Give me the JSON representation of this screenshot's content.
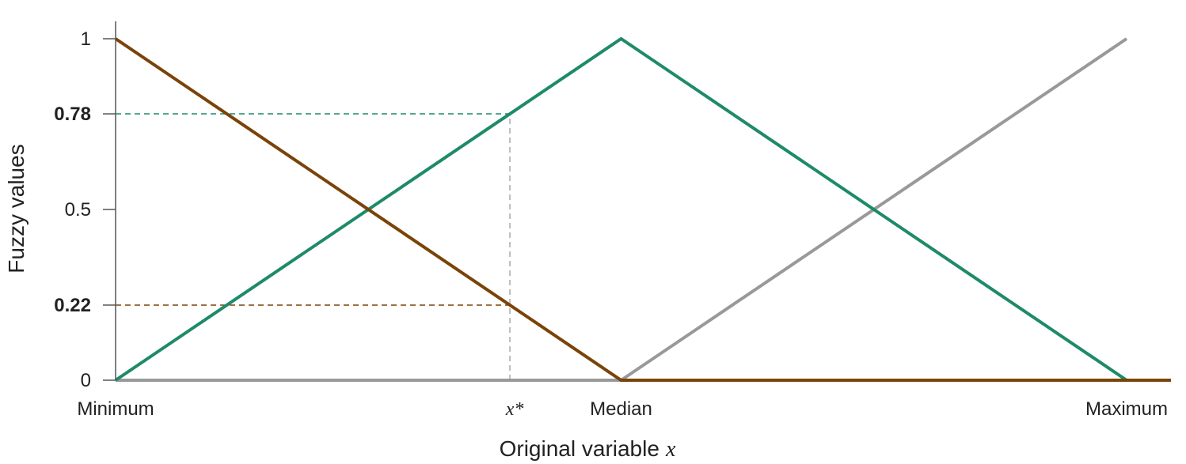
{
  "chart_data": {
    "type": "line",
    "xlabel": "Original variable",
    "xlabel_var": "x",
    "ylabel": "Fuzzy values",
    "ylim": [
      0,
      1
    ],
    "xlim": [
      0,
      1
    ],
    "x_ticks": [
      {
        "value": 0,
        "label": "Minimum"
      },
      {
        "value": 0.5,
        "label": "Median"
      },
      {
        "value": 1,
        "label": "Maximum"
      }
    ],
    "x_marker": {
      "value": 0.39,
      "label": "x*"
    },
    "y_ticks": [
      {
        "value": 0,
        "label": "0",
        "bold": false
      },
      {
        "value": 0.22,
        "label": "0.22",
        "bold": true
      },
      {
        "value": 0.5,
        "label": "0.5",
        "bold": false
      },
      {
        "value": 0.78,
        "label": "0.78",
        "bold": true
      },
      {
        "value": 1,
        "label": "1",
        "bold": false
      }
    ],
    "series": [
      {
        "x": [
          0,
          0.5,
          1.25
        ],
        "y": [
          0,
          0,
          0
        ],
        "color": "#999999",
        "baseline": true
      },
      {
        "x": [
          0.5,
          1
        ],
        "y": [
          0,
          1
        ],
        "color": "#999999"
      },
      {
        "x": [
          0,
          0.5,
          1
        ],
        "y": [
          0,
          1,
          0
        ],
        "color": "#1e8a6a"
      },
      {
        "x": [
          0,
          0.5,
          1.25
        ],
        "y": [
          1,
          0,
          0
        ],
        "color": "#7a4308"
      }
    ],
    "guides": [
      {
        "y": 0.78,
        "x_end": 0.39,
        "color": "#1e8a6a"
      },
      {
        "y": 0.22,
        "x_end": 0.39,
        "color": "#7a4308"
      },
      {
        "x": 0.39,
        "y_end": 0.78,
        "color": "#aaaaaa"
      }
    ],
    "colors": {
      "axis": "#555555"
    }
  }
}
